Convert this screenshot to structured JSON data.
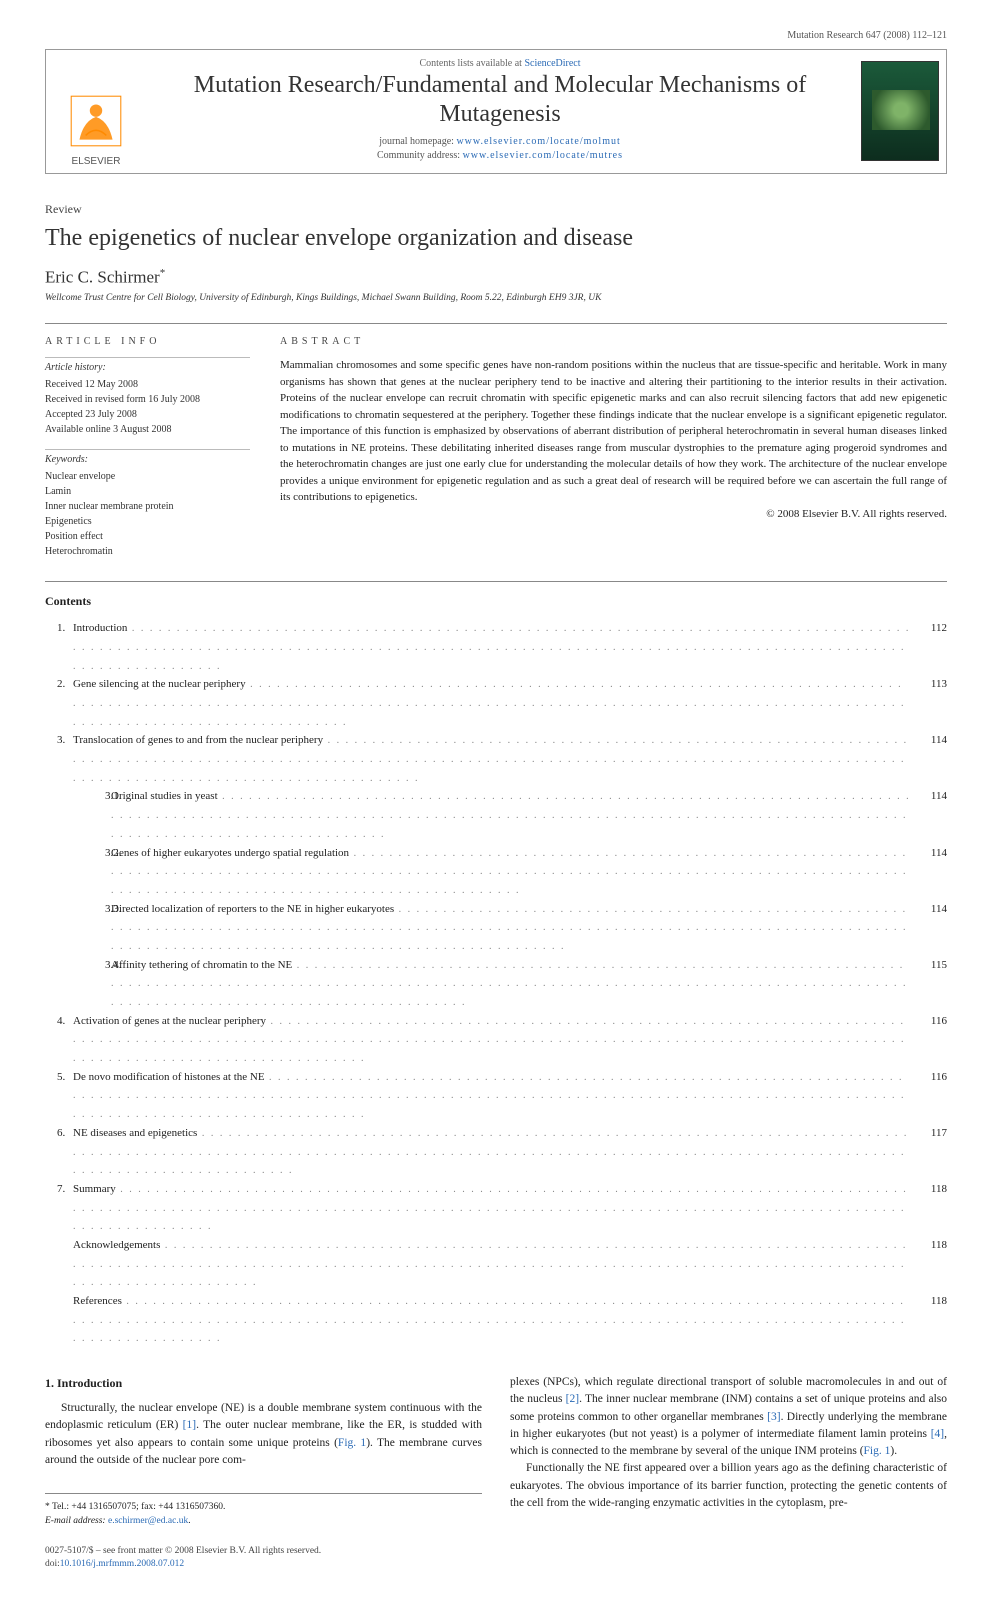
{
  "header_citation": "Mutation Research 647 (2008) 112–121",
  "masthead": {
    "publisher": "ELSEVIER",
    "contents_prefix": "Contents lists available at ",
    "contents_link": "ScienceDirect",
    "journal_name": "Mutation Research/Fundamental and Molecular Mechanisms of Mutagenesis",
    "homepage_label": "journal homepage: ",
    "homepage_url": "www.elsevier.com/locate/molmut",
    "community_label": "Community address: ",
    "community_url": "www.elsevier.com/locate/mutres",
    "logo_fill": "#ff8a00",
    "cover_colors": {
      "top": "#1b5a3a",
      "bottom": "#0d2d1e"
    }
  },
  "article": {
    "type": "Review",
    "title": "The epigenetics of nuclear envelope organization and disease",
    "author": "Eric C. Schirmer",
    "author_marker": "*",
    "affiliation": "Wellcome Trust Centre for Cell Biology, University of Edinburgh, Kings Buildings, Michael Swann Building, Room 5.22, Edinburgh EH9 3JR, UK"
  },
  "info": {
    "heading": "ARTICLE INFO",
    "history_label": "Article history:",
    "history": [
      "Received 12 May 2008",
      "Received in revised form 16 July 2008",
      "Accepted 23 July 2008",
      "Available online 3 August 2008"
    ],
    "keywords_label": "Keywords:",
    "keywords": [
      "Nuclear envelope",
      "Lamin",
      "Inner nuclear membrane protein",
      "Epigenetics",
      "Position effect",
      "Heterochromatin"
    ]
  },
  "abstract": {
    "heading": "ABSTRACT",
    "text": "Mammalian chromosomes and some specific genes have non-random positions within the nucleus that are tissue-specific and heritable. Work in many organisms has shown that genes at the nuclear periphery tend to be inactive and altering their partitioning to the interior results in their activation. Proteins of the nuclear envelope can recruit chromatin with specific epigenetic marks and can also recruit silencing factors that add new epigenetic modifications to chromatin sequestered at the periphery. Together these findings indicate that the nuclear envelope is a significant epigenetic regulator. The importance of this function is emphasized by observations of aberrant distribution of peripheral heterochromatin in several human diseases linked to mutations in NE proteins. These debilitating inherited diseases range from muscular dystrophies to the premature aging progeroid syndromes and the heterochromatin changes are just one early clue for understanding the molecular details of how they work. The architecture of the nuclear envelope provides a unique environment for epigenetic regulation and as such a great deal of research will be required before we can ascertain the full range of its contributions to epigenetics.",
    "copyright": "© 2008 Elsevier B.V. All rights reserved."
  },
  "toc": {
    "heading": "Contents",
    "items": [
      {
        "n": "1.",
        "title": "Introduction",
        "page": "112"
      },
      {
        "n": "2.",
        "title": "Gene silencing at the nuclear periphery",
        "page": "113"
      },
      {
        "n": "3.",
        "title": "Translocation of genes to and from the nuclear periphery",
        "page": "114"
      },
      {
        "sub": "3.1.",
        "title": "Original studies in yeast",
        "page": "114"
      },
      {
        "sub": "3.2.",
        "title": "Genes of higher eukaryotes undergo spatial regulation",
        "page": "114"
      },
      {
        "sub": "3.3.",
        "title": "Directed localization of reporters to the NE in higher eukaryotes",
        "page": "114"
      },
      {
        "sub": "3.4.",
        "title": "Affinity tethering of chromatin to the NE",
        "page": "115"
      },
      {
        "n": "4.",
        "title": "Activation of genes at the nuclear periphery",
        "page": "116"
      },
      {
        "n": "5.",
        "title": "De novo modification of histones at the NE",
        "page": "116"
      },
      {
        "n": "6.",
        "title": "NE diseases and epigenetics",
        "page": "117"
      },
      {
        "n": "7.",
        "title": "Summary",
        "page": "118"
      },
      {
        "n": "",
        "title": "Acknowledgements",
        "page": "118"
      },
      {
        "n": "",
        "title": "References",
        "page": "118"
      }
    ]
  },
  "body": {
    "section_heading": "1. Introduction",
    "p1a": "Structurally, the nuclear envelope (NE) is a double membrane system continuous with the endoplasmic reticulum (ER) ",
    "ref1": "[1]",
    "p1b": ". The outer nuclear membrane, like the ER, is studded with ribosomes yet also appears to contain some unique proteins (",
    "fig1a": "Fig. 1",
    "p1c": "). The membrane curves around the outside of the nuclear pore com-",
    "p2a": "plexes (NPCs), which regulate directional transport of soluble macromolecules in and out of the nucleus ",
    "ref2": "[2]",
    "p2b": ". The inner nuclear membrane (INM) contains a set of unique proteins and also some proteins common to other organellar membranes ",
    "ref3": "[3]",
    "p2c": ". Directly underlying the membrane in higher eukaryotes (but not yeast) is a polymer of intermediate filament lamin proteins ",
    "ref4": "[4]",
    "p2d": ", which is connected to the membrane by several of the unique INM proteins (",
    "fig1b": "Fig. 1",
    "p2e": ").",
    "p3": "Functionally the NE first appeared over a billion years ago as the defining characteristic of eukaryotes. The obvious importance of its barrier function, protecting the genetic contents of the cell from the wide-ranging enzymatic activities in the cytoplasm, pre-"
  },
  "footnotes": {
    "tel_label": "* Tel.: +44 1316507075; fax: +44 1316507360.",
    "email_label": "E-mail address:",
    "email": "e.schirmer@ed.ac.uk",
    "email_suffix": "."
  },
  "footer": {
    "line1": "0027-5107/$ – see front matter © 2008 Elsevier B.V. All rights reserved.",
    "doi_label": "doi:",
    "doi": "10.1016/j.mrfmmm.2008.07.012"
  },
  "colors": {
    "link": "#2a6ab5",
    "text": "#222222",
    "rule": "#888888"
  },
  "typography": {
    "body_fontsize_pt": 9,
    "title_fontsize_pt": 18,
    "journal_fontsize_pt": 18,
    "author_fontsize_pt": 13,
    "abstract_fontsize_pt": 8.5,
    "info_fontsize_pt": 7.5
  }
}
